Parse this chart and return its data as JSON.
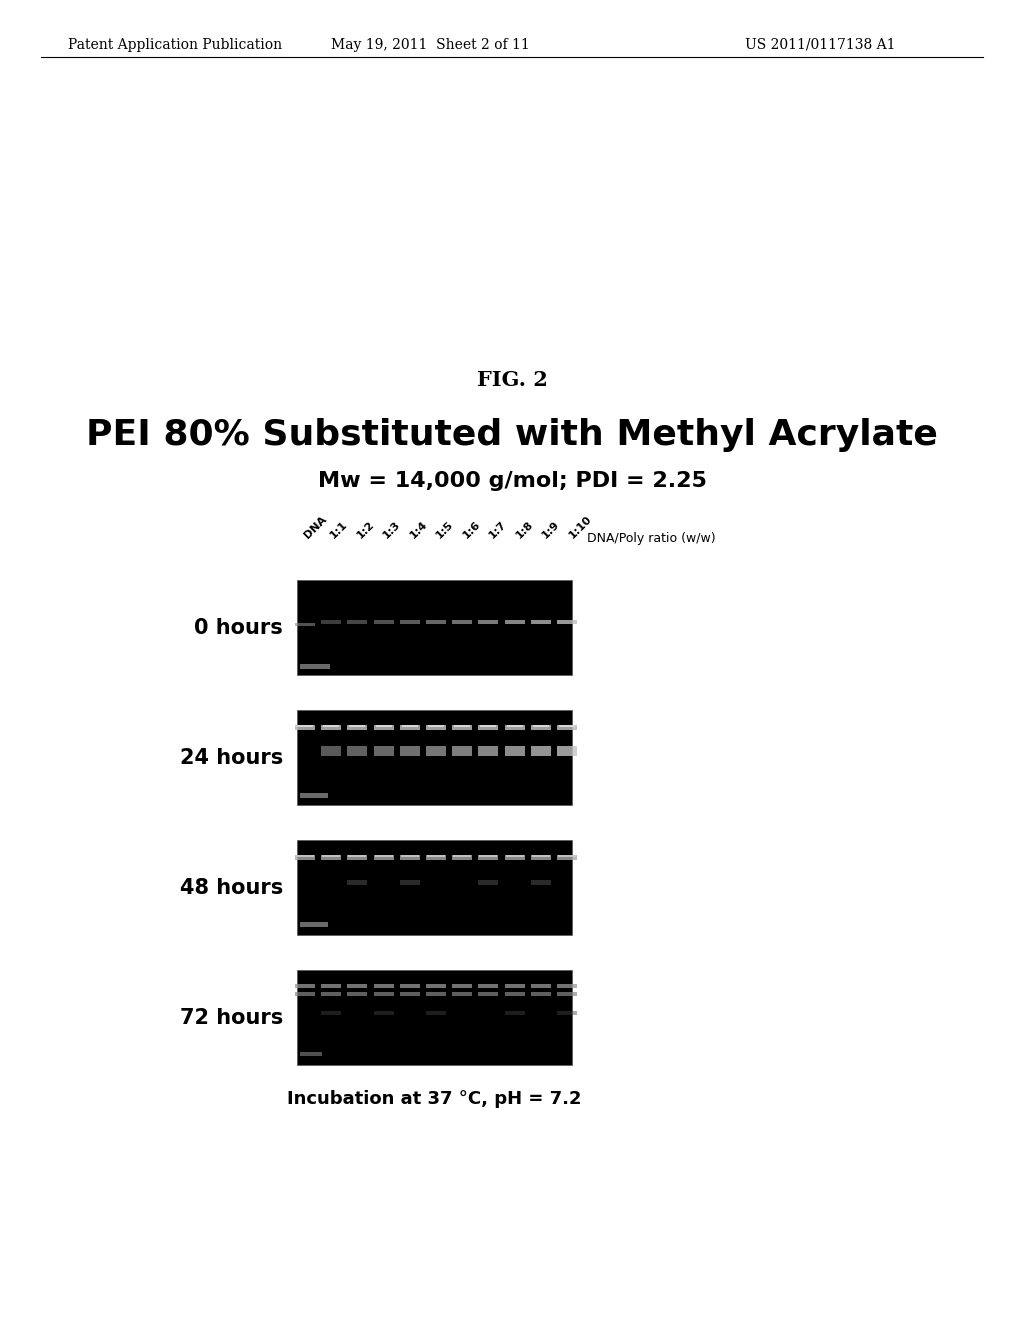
{
  "header_left": "Patent Application Publication",
  "header_mid": "May 19, 2011  Sheet 2 of 11",
  "header_right": "US 2011/0117138 A1",
  "fig_label": "FIG. 2",
  "title_main": "PEI 80% Substituted with Methyl Acrylate",
  "title_sub": "Mw = 14,000 g/mol; PDI = 2.25",
  "col_labels": [
    "DNA",
    "1:1",
    "1:2",
    "1:3",
    "1:4",
    "1:5",
    "1:6",
    "1:7",
    "1:8",
    "1:9",
    "1:10"
  ],
  "col_label_right": "DNA/Poly ratio (w/w)",
  "row_labels": [
    "0 hours",
    "24 hours",
    "48 hours",
    "72 hours"
  ],
  "bottom_label": "Incubation at 37 °C, pH = 7.2",
  "background_color": "#ffffff"
}
